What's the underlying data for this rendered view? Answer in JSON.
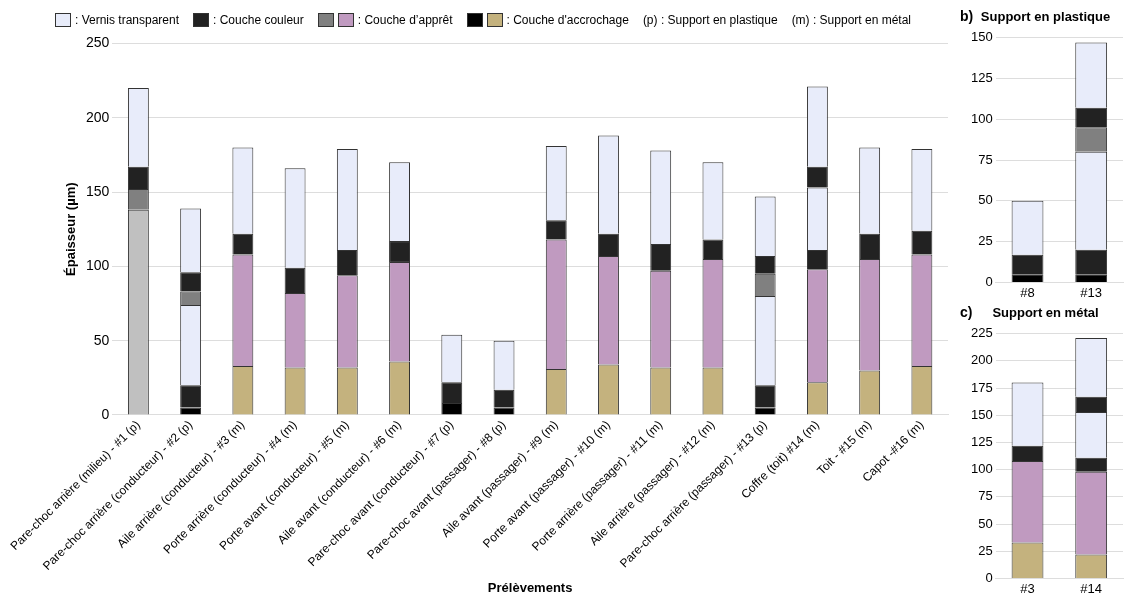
{
  "chart_data": [
    {
      "type": "bar",
      "stacked": true,
      "xlabel": "Prélèvements",
      "ylabel": "Épaisseur (µm)",
      "ylim": [
        0,
        250
      ],
      "yticks": [
        0,
        50,
        100,
        150,
        200,
        250
      ],
      "grid": "y",
      "legend": "top",
      "annotations": [
        "(p) : Support en plastique",
        "(m) : Support en métal"
      ],
      "categories": [
        "Pare-choc arrière (milieu) - #1 (p)",
        "Pare-choc arrière (conducteur) - #2 (p)",
        "Aile arrière (conducteur) - #3 (m)",
        "Porte arrière (conducteur) - #4 (m)",
        "Porte avant (conducteur) - #5 (m)",
        "Aile avant (conducteur) - #6 (m)",
        "Pare-choc avant (conducteur) - #7 (p)",
        "Pare-choc avant (passager) - #8 (p)",
        "Aile avant (passager) - #9 (m)",
        "Porte avant (passager) - #10 (m)",
        "Porte arrière (passager) - #11 (m)",
        "Aile arrière (passager) - #12 (m)",
        "Pare-choc arrière (passager) - #13 (p)",
        "Coffre (toit) #14 (m)",
        "Toit - #15 (m)",
        "Capot -#16 (m)"
      ],
      "series": [
        {
          "color": "#c0c0c0",
          "values": [
            138,
            null,
            null,
            null,
            null,
            null,
            null,
            null,
            null,
            null,
            null,
            null,
            null,
            null,
            null,
            null
          ]
        },
        {
          "name": ": Couche d'accrochage",
          "colors": [
            "#000000",
            "#000000",
            "#c4b27e",
            "#c4b27e",
            "#c4b27e",
            "#c4b27e",
            "#000000",
            "#000000",
            "#c4b27e",
            "#c4b27e",
            "#c4b27e",
            "#c4b27e",
            "#000000",
            "#c4b27e",
            "#c4b27e",
            "#c4b27e"
          ],
          "values": [
            null,
            5,
            33,
            32,
            32,
            36,
            8,
            5,
            31,
            34,
            32,
            32,
            5,
            22,
            30,
            33
          ]
        },
        {
          "color": "#222222",
          "values": [
            null,
            15,
            null,
            null,
            null,
            null,
            14,
            12,
            null,
            null,
            null,
            null,
            15,
            null,
            null,
            null
          ]
        },
        {
          "color": "#e8ecfa",
          "values": [
            null,
            54,
            null,
            null,
            null,
            null,
            32,
            33,
            null,
            null,
            null,
            null,
            60,
            null,
            null,
            null
          ]
        },
        {
          "name": ": Couche d’apprêt",
          "colors": [
            "#808080",
            "#808080",
            "#c09ac0",
            "#c09ac0",
            "#c09ac0",
            "#c09ac0",
            "#c09ac0",
            "#c09ac0",
            "#c09ac0",
            "#c09ac0",
            "#c09ac0",
            "#c09ac0",
            "#808080",
            "#c09ac0",
            "#c09ac0",
            "#c09ac0"
          ],
          "values": [
            14,
            9,
            75,
            50,
            62,
            67,
            null,
            null,
            87,
            73,
            65,
            73,
            15,
            76,
            75,
            75
          ]
        },
        {
          "name": ": Couche couleur",
          "color": "#222222",
          "values": [
            15,
            13,
            14,
            17,
            17,
            14,
            null,
            null,
            13,
            15,
            18,
            13,
            12,
            13,
            17,
            16
          ]
        },
        {
          "name": ": Vernis transparent",
          "color": "#e8ecfa",
          "values": [
            53,
            43,
            58,
            67,
            68,
            53,
            null,
            null,
            50,
            66,
            63,
            52,
            40,
            42,
            58,
            55
          ]
        },
        {
          "color": "#222222",
          "values": [
            null,
            null,
            null,
            null,
            null,
            null,
            null,
            null,
            null,
            null,
            null,
            null,
            null,
            14,
            null,
            null
          ]
        },
        {
          "color": "#e8ecfa",
          "values": [
            null,
            null,
            null,
            null,
            null,
            null,
            null,
            null,
            null,
            null,
            null,
            null,
            null,
            54,
            null,
            null
          ]
        }
      ]
    },
    {
      "type": "bar",
      "stacked": true,
      "title": "Support en plastique",
      "annotations": [
        "b)"
      ],
      "ylim": [
        0,
        150
      ],
      "yticks": [
        0,
        25,
        50,
        75,
        100,
        125,
        150
      ],
      "grid": "y",
      "categories": [
        "#8",
        "#13"
      ],
      "series": [
        {
          "color": "#000000",
          "values": [
            5,
            5
          ]
        },
        {
          "color": "#222222",
          "values": [
            12,
            15
          ]
        },
        {
          "color": "#e8ecfa",
          "values": [
            33,
            60
          ]
        },
        {
          "color": "#808080",
          "values": [
            null,
            15
          ]
        },
        {
          "color": "#222222",
          "values": [
            null,
            12
          ]
        },
        {
          "color": "#e8ecfa",
          "values": [
            null,
            40
          ]
        }
      ]
    },
    {
      "type": "bar",
      "stacked": true,
      "title": "Support en métal",
      "annotations": [
        "c)"
      ],
      "ylim": [
        0,
        225
      ],
      "yticks": [
        0,
        25,
        50,
        75,
        100,
        125,
        150,
        175,
        200,
        225
      ],
      "grid": "y",
      "categories": [
        "#3",
        "#14"
      ],
      "series": [
        {
          "color": "#c4b27e",
          "values": [
            33,
            22
          ]
        },
        {
          "color": "#c09ac0",
          "values": [
            75,
            76
          ]
        },
        {
          "color": "#222222",
          "values": [
            14,
            13
          ]
        },
        {
          "color": "#e8ecfa",
          "values": [
            58,
            42
          ]
        },
        {
          "color": "#222222",
          "values": [
            null,
            14
          ]
        },
        {
          "color": "#e8ecfa",
          "values": [
            null,
            54
          ]
        }
      ]
    }
  ]
}
